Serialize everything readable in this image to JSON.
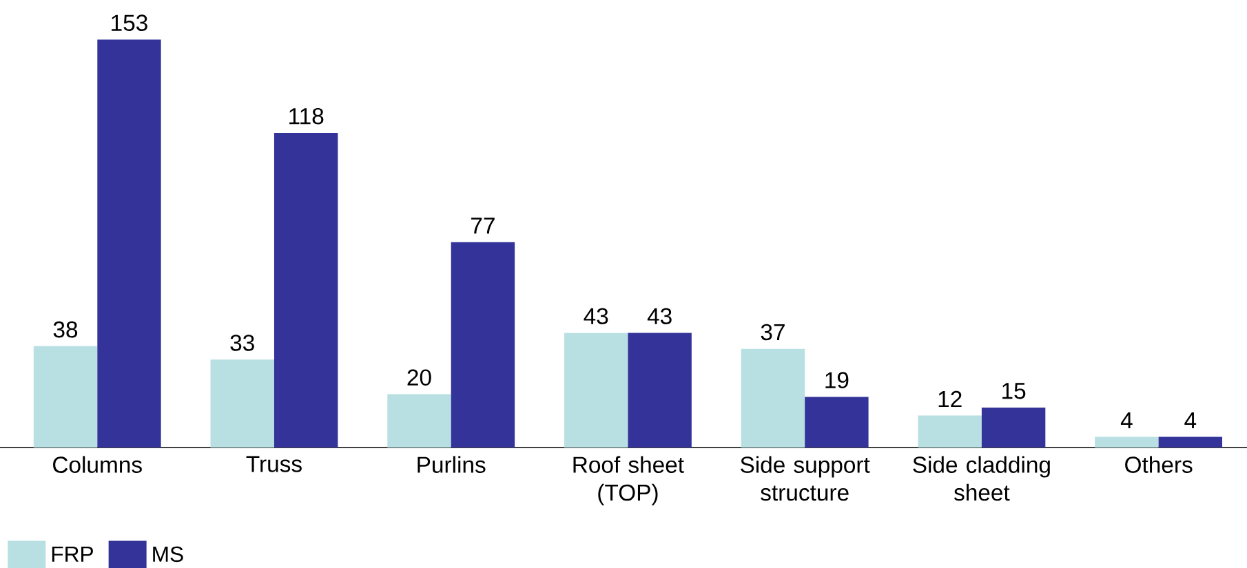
{
  "chart_data": {
    "type": "bar",
    "categories": [
      "Columns",
      "Truss",
      "Purlins",
      "Roof sheet (TOP)",
      "Side support structure",
      "Side cladding sheet",
      "Others"
    ],
    "series": [
      {
        "name": "FRP",
        "color": "#b8e0e2",
        "values": [
          38,
          33,
          20,
          43,
          37,
          12,
          4
        ]
      },
      {
        "name": "MS",
        "color": "#333399",
        "values": [
          153,
          118,
          77,
          43,
          19,
          15,
          4
        ]
      }
    ],
    "data_labels": true,
    "legend": "bottom left"
  }
}
